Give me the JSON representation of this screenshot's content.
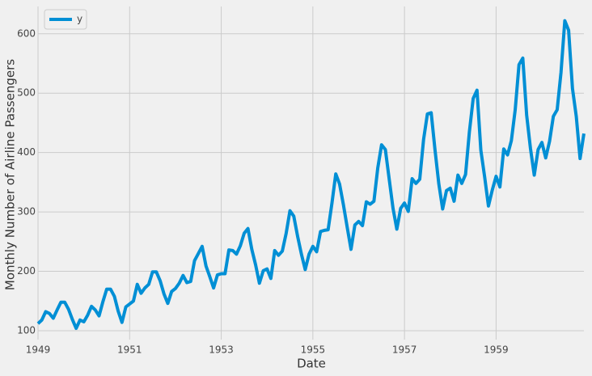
{
  "chart_data": {
    "type": "line",
    "xlabel": "Date",
    "ylabel": "Monthly Number of Airline Passengers",
    "x": [
      1949,
      1949.083,
      1949.167,
      1949.25,
      1949.333,
      1949.417,
      1949.5,
      1949.583,
      1949.667,
      1949.75,
      1949.833,
      1949.917,
      1950,
      1950.083,
      1950.167,
      1950.25,
      1950.333,
      1950.417,
      1950.5,
      1950.583,
      1950.667,
      1950.75,
      1950.833,
      1950.917,
      1951,
      1951.083,
      1951.167,
      1951.25,
      1951.333,
      1951.417,
      1951.5,
      1951.583,
      1951.667,
      1951.75,
      1951.833,
      1951.917,
      1952,
      1952.083,
      1952.167,
      1952.25,
      1952.333,
      1952.417,
      1952.5,
      1952.583,
      1952.667,
      1952.75,
      1952.833,
      1952.917,
      1953,
      1953.083,
      1953.167,
      1953.25,
      1953.333,
      1953.417,
      1953.5,
      1953.583,
      1953.667,
      1953.75,
      1953.833,
      1953.917,
      1954,
      1954.083,
      1954.167,
      1954.25,
      1954.333,
      1954.417,
      1954.5,
      1954.583,
      1954.667,
      1954.75,
      1954.833,
      1954.917,
      1955,
      1955.083,
      1955.167,
      1955.25,
      1955.333,
      1955.417,
      1955.5,
      1955.583,
      1955.667,
      1955.75,
      1955.833,
      1955.917,
      1956,
      1956.083,
      1956.167,
      1956.25,
      1956.333,
      1956.417,
      1956.5,
      1956.583,
      1956.667,
      1956.75,
      1956.833,
      1956.917,
      1957,
      1957.083,
      1957.167,
      1957.25,
      1957.333,
      1957.417,
      1957.5,
      1957.583,
      1957.667,
      1957.75,
      1957.833,
      1957.917,
      1958,
      1958.083,
      1958.167,
      1958.25,
      1958.333,
      1958.417,
      1958.5,
      1958.583,
      1958.667,
      1958.75,
      1958.833,
      1958.917,
      1959,
      1959.083,
      1959.167,
      1959.25,
      1959.333,
      1959.417,
      1959.5,
      1959.583,
      1959.667,
      1959.75,
      1959.833,
      1959.917,
      1960,
      1960.083,
      1960.167,
      1960.25,
      1960.333,
      1960.417,
      1960.5,
      1960.583,
      1960.667,
      1960.75,
      1960.833,
      1960.917
    ],
    "series": [
      {
        "name": "y",
        "color": "#008fd5",
        "values": [
          112,
          118,
          132,
          129,
          121,
          135,
          148,
          148,
          136,
          119,
          104,
          118,
          115,
          126,
          141,
          135,
          125,
          149,
          170,
          170,
          158,
          133,
          114,
          140,
          145,
          150,
          178,
          163,
          172,
          178,
          199,
          199,
          184,
          162,
          146,
          166,
          171,
          180,
          193,
          181,
          183,
          218,
          230,
          242,
          209,
          191,
          172,
          194,
          196,
          196,
          236,
          235,
          229,
          243,
          264,
          272,
          237,
          211,
          180,
          201,
          204,
          188,
          235,
          227,
          234,
          264,
          302,
          293,
          259,
          229,
          203,
          229,
          242,
          233,
          267,
          269,
          270,
          315,
          364,
          347,
          312,
          274,
          237,
          278,
          284,
          277,
          317,
          313,
          318,
          374,
          413,
          405,
          355,
          306,
          271,
          306,
          315,
          301,
          356,
          348,
          355,
          422,
          465,
          467,
          404,
          347,
          305,
          336,
          340,
          318,
          362,
          348,
          363,
          435,
          491,
          505,
          404,
          359,
          310,
          337,
          360,
          342,
          406,
          396,
          420,
          472,
          548,
          559,
          463,
          407,
          362,
          405,
          417,
          391,
          419,
          461,
          472,
          535,
          622,
          606,
          508,
          461,
          390,
          432
        ]
      }
    ],
    "xlim": [
      1949,
      1960.917
    ],
    "xticks": [
      1949,
      1951,
      1953,
      1955,
      1957,
      1959
    ],
    "ylim": [
      85,
      646
    ],
    "yticks": [
      100,
      200,
      300,
      400,
      500,
      600
    ],
    "grid": true,
    "legend": "upper left"
  }
}
